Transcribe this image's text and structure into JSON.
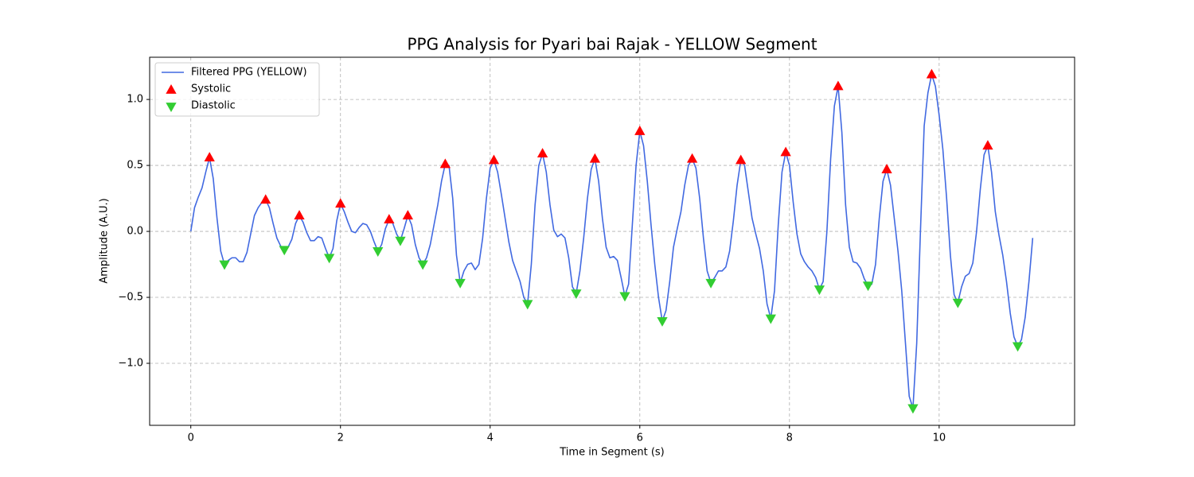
{
  "chart_data": {
    "type": "line",
    "title": "PPG Analysis for Pyari bai Rajak - YELLOW Segment",
    "x_label": "Time in Segment (s)",
    "y_label": "Amplitude (A.U.)",
    "xlim": [
      -0.55,
      11.81
    ],
    "ylim": [
      -1.47,
      1.32
    ],
    "xticks": [
      0,
      2,
      4,
      6,
      8,
      10
    ],
    "yticks": [
      {
        "value": -1.0,
        "label": "−1.0"
      },
      {
        "value": -0.5,
        "label": "−0.5"
      },
      {
        "value": 0.0,
        "label": "0.0"
      },
      {
        "value": 0.5,
        "label": "0.5"
      },
      {
        "value": 1.0,
        "label": "1.0"
      }
    ],
    "grid": true,
    "legend": "upper left",
    "series": [
      {
        "name": "Filtered PPG (YELLOW)",
        "type": "line",
        "color": "#4169e1",
        "x": [
          0,
          0.05,
          0.1,
          0.15,
          0.2,
          0.25,
          0.3,
          0.35,
          0.4,
          0.45,
          0.5,
          0.55,
          0.6,
          0.65,
          0.7,
          0.75,
          0.8,
          0.85,
          0.9,
          0.95,
          1.0,
          1.05,
          1.1,
          1.15,
          1.2,
          1.25,
          1.3,
          1.35,
          1.4,
          1.45,
          1.5,
          1.55,
          1.6,
          1.65,
          1.7,
          1.75,
          1.8,
          1.85,
          1.9,
          1.95,
          2.0,
          2.05,
          2.1,
          2.15,
          2.2,
          2.25,
          2.3,
          2.35,
          2.4,
          2.45,
          2.5,
          2.55,
          2.6,
          2.65,
          2.7,
          2.75,
          2.8,
          2.85,
          2.9,
          2.95,
          3.0,
          3.05,
          3.1,
          3.15,
          3.2,
          3.25,
          3.3,
          3.35,
          3.4,
          3.45,
          3.5,
          3.55,
          3.6,
          3.65,
          3.7,
          3.75,
          3.8,
          3.85,
          3.9,
          3.95,
          4.0,
          4.05,
          4.1,
          4.15,
          4.2,
          4.25,
          4.3,
          4.35,
          4.4,
          4.45,
          4.5,
          4.55,
          4.6,
          4.65,
          4.7,
          4.75,
          4.8,
          4.85,
          4.9,
          4.95,
          5.0,
          5.05,
          5.1,
          5.15,
          5.2,
          5.25,
          5.3,
          5.35,
          5.4,
          5.45,
          5.5,
          5.55,
          5.6,
          5.65,
          5.7,
          5.75,
          5.8,
          5.85,
          5.9,
          5.95,
          6.0,
          6.05,
          6.1,
          6.15,
          6.2,
          6.25,
          6.3,
          6.35,
          6.4,
          6.45,
          6.5,
          6.55,
          6.6,
          6.65,
          6.7,
          6.75,
          6.8,
          6.85,
          6.9,
          6.95,
          7.0,
          7.05,
          7.1,
          7.15,
          7.2,
          7.25,
          7.3,
          7.35,
          7.4,
          7.45,
          7.5,
          7.55,
          7.6,
          7.65,
          7.7,
          7.75,
          7.8,
          7.85,
          7.9,
          7.95,
          8.0,
          8.05,
          8.1,
          8.15,
          8.2,
          8.25,
          8.3,
          8.35,
          8.4,
          8.45,
          8.5,
          8.55,
          8.6,
          8.65,
          8.7,
          8.75,
          8.8,
          8.85,
          8.9,
          8.95,
          9.0,
          9.05,
          9.1,
          9.15,
          9.2,
          9.25,
          9.3,
          9.35,
          9.4,
          9.45,
          9.5,
          9.55,
          9.6,
          9.65,
          9.7,
          9.75,
          9.8,
          9.85,
          9.9,
          9.95,
          10.0,
          10.05,
          10.1,
          10.15,
          10.2,
          10.25,
          10.3,
          10.35,
          10.4,
          10.45,
          10.5,
          10.55,
          10.6,
          10.65,
          10.7,
          10.75,
          10.8,
          10.85,
          10.9,
          10.95,
          11.0,
          11.05,
          11.1,
          11.15,
          11.2,
          11.25
        ],
        "values": [
          0.0,
          0.18,
          0.26,
          0.33,
          0.45,
          0.56,
          0.4,
          0.1,
          -0.15,
          -0.25,
          -0.22,
          -0.2,
          -0.2,
          -0.23,
          -0.23,
          -0.16,
          -0.02,
          0.12,
          0.18,
          0.22,
          0.24,
          0.18,
          0.06,
          -0.05,
          -0.11,
          -0.14,
          -0.12,
          -0.06,
          0.06,
          0.12,
          0.07,
          -0.01,
          -0.07,
          -0.07,
          -0.04,
          -0.05,
          -0.13,
          -0.2,
          -0.13,
          0.08,
          0.21,
          0.15,
          0.07,
          0.0,
          -0.01,
          0.03,
          0.06,
          0.05,
          0.0,
          -0.08,
          -0.15,
          -0.1,
          0.02,
          0.09,
          0.06,
          -0.02,
          -0.07,
          0.02,
          0.12,
          0.05,
          -0.1,
          -0.2,
          -0.25,
          -0.2,
          -0.1,
          0.05,
          0.2,
          0.38,
          0.51,
          0.5,
          0.25,
          -0.18,
          -0.39,
          -0.3,
          -0.25,
          -0.24,
          -0.29,
          -0.25,
          -0.05,
          0.25,
          0.48,
          0.54,
          0.45,
          0.28,
          0.1,
          -0.08,
          -0.22,
          -0.3,
          -0.38,
          -0.5,
          -0.55,
          -0.25,
          0.2,
          0.5,
          0.59,
          0.45,
          0.2,
          0.01,
          -0.04,
          -0.02,
          -0.05,
          -0.2,
          -0.42,
          -0.47,
          -0.3,
          -0.05,
          0.25,
          0.47,
          0.55,
          0.38,
          0.1,
          -0.12,
          -0.2,
          -0.19,
          -0.22,
          -0.35,
          -0.49,
          -0.4,
          0.05,
          0.5,
          0.76,
          0.65,
          0.38,
          0.05,
          -0.25,
          -0.5,
          -0.68,
          -0.6,
          -0.38,
          -0.12,
          0.02,
          0.15,
          0.35,
          0.5,
          0.55,
          0.48,
          0.25,
          -0.05,
          -0.3,
          -0.39,
          -0.35,
          -0.3,
          -0.3,
          -0.27,
          -0.15,
          0.08,
          0.35,
          0.54,
          0.5,
          0.3,
          0.1,
          -0.02,
          -0.13,
          -0.3,
          -0.55,
          -0.66,
          -0.45,
          0.05,
          0.45,
          0.6,
          0.5,
          0.22,
          -0.02,
          -0.17,
          -0.23,
          -0.27,
          -0.3,
          -0.35,
          -0.44,
          -0.38,
          0.0,
          0.55,
          0.95,
          1.1,
          0.75,
          0.2,
          -0.12,
          -0.23,
          -0.24,
          -0.28,
          -0.36,
          -0.41,
          -0.4,
          -0.25,
          0.1,
          0.38,
          0.47,
          0.35,
          0.1,
          -0.15,
          -0.45,
          -0.85,
          -1.25,
          -1.34,
          -0.85,
          0.0,
          0.8,
          1.05,
          1.19,
          1.1,
          0.88,
          0.62,
          0.25,
          -0.18,
          -0.48,
          -0.54,
          -0.42,
          -0.34,
          -0.32,
          -0.24,
          0.0,
          0.32,
          0.58,
          0.65,
          0.45,
          0.15,
          -0.03,
          -0.18,
          -0.38,
          -0.62,
          -0.8,
          -0.87,
          -0.82,
          -0.65,
          -0.38,
          -0.05
        ]
      },
      {
        "name": "Systolic",
        "type": "scatter",
        "marker": "triangle-up",
        "color": "#ff0000",
        "x": [
          0.25,
          1.0,
          1.45,
          2.0,
          2.65,
          2.9,
          3.4,
          4.05,
          4.7,
          5.4,
          6.0,
          6.7,
          7.35,
          7.95,
          8.65,
          9.3,
          9.9,
          10.65
        ],
        "values": [
          0.56,
          0.24,
          0.12,
          0.21,
          0.09,
          0.12,
          0.51,
          0.54,
          0.59,
          0.55,
          0.76,
          0.55,
          0.54,
          0.6,
          1.1,
          0.47,
          1.19,
          0.65
        ]
      },
      {
        "name": "Diastolic",
        "type": "scatter",
        "marker": "triangle-down",
        "color": "#32cd32",
        "x": [
          0.45,
          1.25,
          1.85,
          2.5,
          2.8,
          3.1,
          3.6,
          4.5,
          5.15,
          5.8,
          6.3,
          6.95,
          7.75,
          8.4,
          9.05,
          9.65,
          10.25,
          11.05
        ],
        "values": [
          -0.25,
          -0.14,
          -0.2,
          -0.15,
          -0.07,
          -0.25,
          -0.39,
          -0.55,
          -0.47,
          -0.49,
          -0.68,
          -0.39,
          -0.66,
          -0.44,
          -0.41,
          -1.34,
          -0.54,
          -0.87
        ]
      }
    ]
  }
}
